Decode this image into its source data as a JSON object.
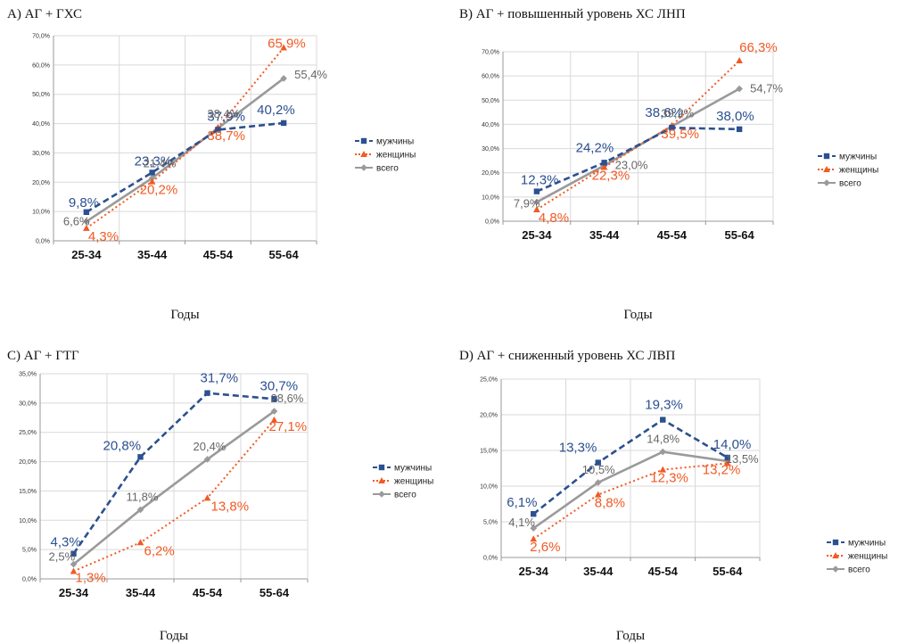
{
  "colors": {
    "men": "#2c5090",
    "women": "#f05a24",
    "total": "#9a9a9a",
    "grid": "#d9d9d9",
    "axis": "#999999"
  },
  "legend": [
    "мужчины",
    "женщины",
    "всего"
  ],
  "xlabel": "Годы",
  "chart_data": [
    {
      "type": "line",
      "title": "A) АГ + ГХС",
      "xlabel": "Годы",
      "categories": [
        "25-34",
        "35-44",
        "45-54",
        "55-64"
      ],
      "yticks": [
        "0,0%",
        "10,0%",
        "20,0%",
        "30,0%",
        "40,0%",
        "50,0%",
        "60,0%",
        "70,0%"
      ],
      "ylim": [
        0,
        70
      ],
      "legend": "right",
      "series": [
        {
          "name": "мужчины",
          "values": [
            9.8,
            23.3,
            37.9,
            40.2
          ],
          "labels": [
            "9,8%",
            "23,3%",
            "37,9%",
            "40,2%"
          ]
        },
        {
          "name": "женщины",
          "values": [
            4.3,
            20.2,
            38.7,
            65.9
          ],
          "labels": [
            "4,3%",
            "20,2%",
            "38,7%",
            "65,9%"
          ]
        },
        {
          "name": "всего",
          "values": [
            6.6,
            21.4,
            38.4,
            55.4
          ],
          "labels": [
            "6,6%",
            "21,4%",
            "38,4%",
            "55,4%"
          ]
        }
      ]
    },
    {
      "type": "line",
      "title": "B) АГ + повышенный уровень ХС ЛНП",
      "xlabel": "Годы",
      "categories": [
        "25-34",
        "35-44",
        "45-54",
        "55-64"
      ],
      "yticks": [
        "0,0%",
        "10,0%",
        "20,0%",
        "30,0%",
        "40,0%",
        "50,0%",
        "60,0%",
        "70,0%"
      ],
      "ylim": [
        0,
        70
      ],
      "legend": "right",
      "series": [
        {
          "name": "мужчины",
          "values": [
            12.3,
            24.2,
            38.6,
            38.0
          ],
          "labels": [
            "12,3%",
            "24,2%",
            "38,6%",
            "38,0%"
          ]
        },
        {
          "name": "женщины",
          "values": [
            4.8,
            22.3,
            39.5,
            66.3
          ],
          "labels": [
            "4,8%",
            "22,3%",
            "39,5%",
            "66,3%"
          ]
        },
        {
          "name": "всего",
          "values": [
            7.9,
            23.0,
            39.2,
            54.7
          ],
          "labels": [
            "7,9%",
            "23,0%",
            "39,2%",
            "54,7%"
          ]
        }
      ]
    },
    {
      "type": "line",
      "title": "C) АГ + ГТГ",
      "xlabel": "Годы",
      "categories": [
        "25-34",
        "35-44",
        "45-54",
        "55-64"
      ],
      "yticks": [
        "0,0%",
        "5,0%",
        "10,0%",
        "15,0%",
        "20,0%",
        "25,0%",
        "30,0%",
        "35,0%"
      ],
      "ylim": [
        0,
        35
      ],
      "legend": "right",
      "series": [
        {
          "name": "мужчины",
          "values": [
            4.3,
            20.8,
            31.7,
            30.7
          ],
          "labels": [
            "4,3%",
            "20,8%",
            "31,7%",
            "30,7%"
          ]
        },
        {
          "name": "женщины",
          "values": [
            1.3,
            6.2,
            13.8,
            27.1
          ],
          "labels": [
            "1,3%",
            "6,2%",
            "13,8%",
            "27,1%"
          ]
        },
        {
          "name": "всего",
          "values": [
            2.5,
            11.8,
            20.4,
            28.6
          ],
          "labels": [
            "2,5%",
            "11,8%",
            "20,4%",
            "28,6%"
          ]
        }
      ]
    },
    {
      "type": "line",
      "title": "D) АГ + сниженный уровень ХС ЛВП",
      "xlabel": "Годы",
      "categories": [
        "25-34",
        "35-44",
        "45-54",
        "55-64"
      ],
      "yticks": [
        "0,0%",
        "5,0%",
        "10,0%",
        "15,0%",
        "20,0%",
        "25,0%"
      ],
      "ylim": [
        0,
        25
      ],
      "legend": "bottom-right",
      "series": [
        {
          "name": "мужчины",
          "values": [
            6.1,
            13.3,
            19.3,
            14.0
          ],
          "labels": [
            "6,1%",
            "13,3%",
            "19,3%",
            "14,0%"
          ]
        },
        {
          "name": "женщины",
          "values": [
            2.6,
            8.8,
            12.3,
            13.2
          ],
          "labels": [
            "2,6%",
            "8,8%",
            "12,3%",
            "13,2%"
          ]
        },
        {
          "name": "всего",
          "values": [
            4.1,
            10.5,
            14.8,
            13.5
          ],
          "labels": [
            "4,1%",
            "10,5%",
            "14,8%",
            "13,5%"
          ]
        }
      ]
    }
  ]
}
